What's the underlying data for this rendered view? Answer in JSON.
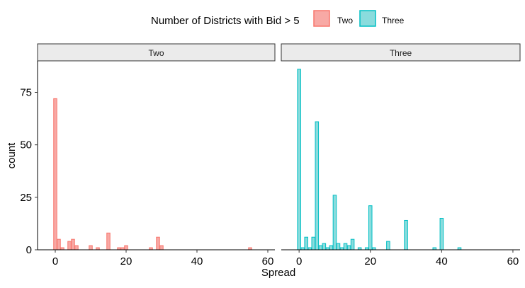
{
  "chart_data": {
    "type": "bar",
    "title": "",
    "xlabel": "Spread",
    "ylabel": "count",
    "xlim": [
      -5,
      62
    ],
    "ylim": [
      0,
      90
    ],
    "x_ticks": [
      0,
      20,
      40,
      60
    ],
    "y_ticks": [
      0,
      25,
      50,
      75
    ],
    "grid": false,
    "legend": {
      "title": "Number of Districts with Bid > 5",
      "position": "top",
      "entries": [
        {
          "name": "Two",
          "fill": "#F8A9A5",
          "stroke": "#F8766D"
        },
        {
          "name": "Three",
          "fill": "#8ADCDD",
          "stroke": "#00BFC4"
        }
      ]
    },
    "facets": [
      {
        "strip_label": "Two",
        "series_name": "Two",
        "fill": "#F8A9A5",
        "stroke": "#F8766D",
        "bars": [
          {
            "x": 0,
            "count": 72
          },
          {
            "x": 1,
            "count": 5
          },
          {
            "x": 2,
            "count": 1
          },
          {
            "x": 4,
            "count": 4
          },
          {
            "x": 5,
            "count": 5
          },
          {
            "x": 6,
            "count": 2
          },
          {
            "x": 10,
            "count": 2
          },
          {
            "x": 12,
            "count": 1
          },
          {
            "x": 15,
            "count": 8
          },
          {
            "x": 18,
            "count": 1
          },
          {
            "x": 19,
            "count": 1
          },
          {
            "x": 20,
            "count": 2
          },
          {
            "x": 27,
            "count": 1
          },
          {
            "x": 29,
            "count": 6
          },
          {
            "x": 30,
            "count": 2
          },
          {
            "x": 55,
            "count": 1
          }
        ]
      },
      {
        "strip_label": "Three",
        "series_name": "Three",
        "fill": "#8ADCDD",
        "stroke": "#00BFC4",
        "bars": [
          {
            "x": 0,
            "count": 86
          },
          {
            "x": 1,
            "count": 1
          },
          {
            "x": 2,
            "count": 6
          },
          {
            "x": 3,
            "count": 1
          },
          {
            "x": 4,
            "count": 6
          },
          {
            "x": 5,
            "count": 61
          },
          {
            "x": 6,
            "count": 2
          },
          {
            "x": 7,
            "count": 3
          },
          {
            "x": 8,
            "count": 1
          },
          {
            "x": 9,
            "count": 2
          },
          {
            "x": 10,
            "count": 26
          },
          {
            "x": 11,
            "count": 3
          },
          {
            "x": 12,
            "count": 1
          },
          {
            "x": 13,
            "count": 3
          },
          {
            "x": 14,
            "count": 2
          },
          {
            "x": 15,
            "count": 5
          },
          {
            "x": 17,
            "count": 1
          },
          {
            "x": 19,
            "count": 1
          },
          {
            "x": 20,
            "count": 21
          },
          {
            "x": 21,
            "count": 1
          },
          {
            "x": 25,
            "count": 4
          },
          {
            "x": 30,
            "count": 14
          },
          {
            "x": 38,
            "count": 1
          },
          {
            "x": 40,
            "count": 15
          },
          {
            "x": 45,
            "count": 1
          }
        ]
      }
    ]
  }
}
